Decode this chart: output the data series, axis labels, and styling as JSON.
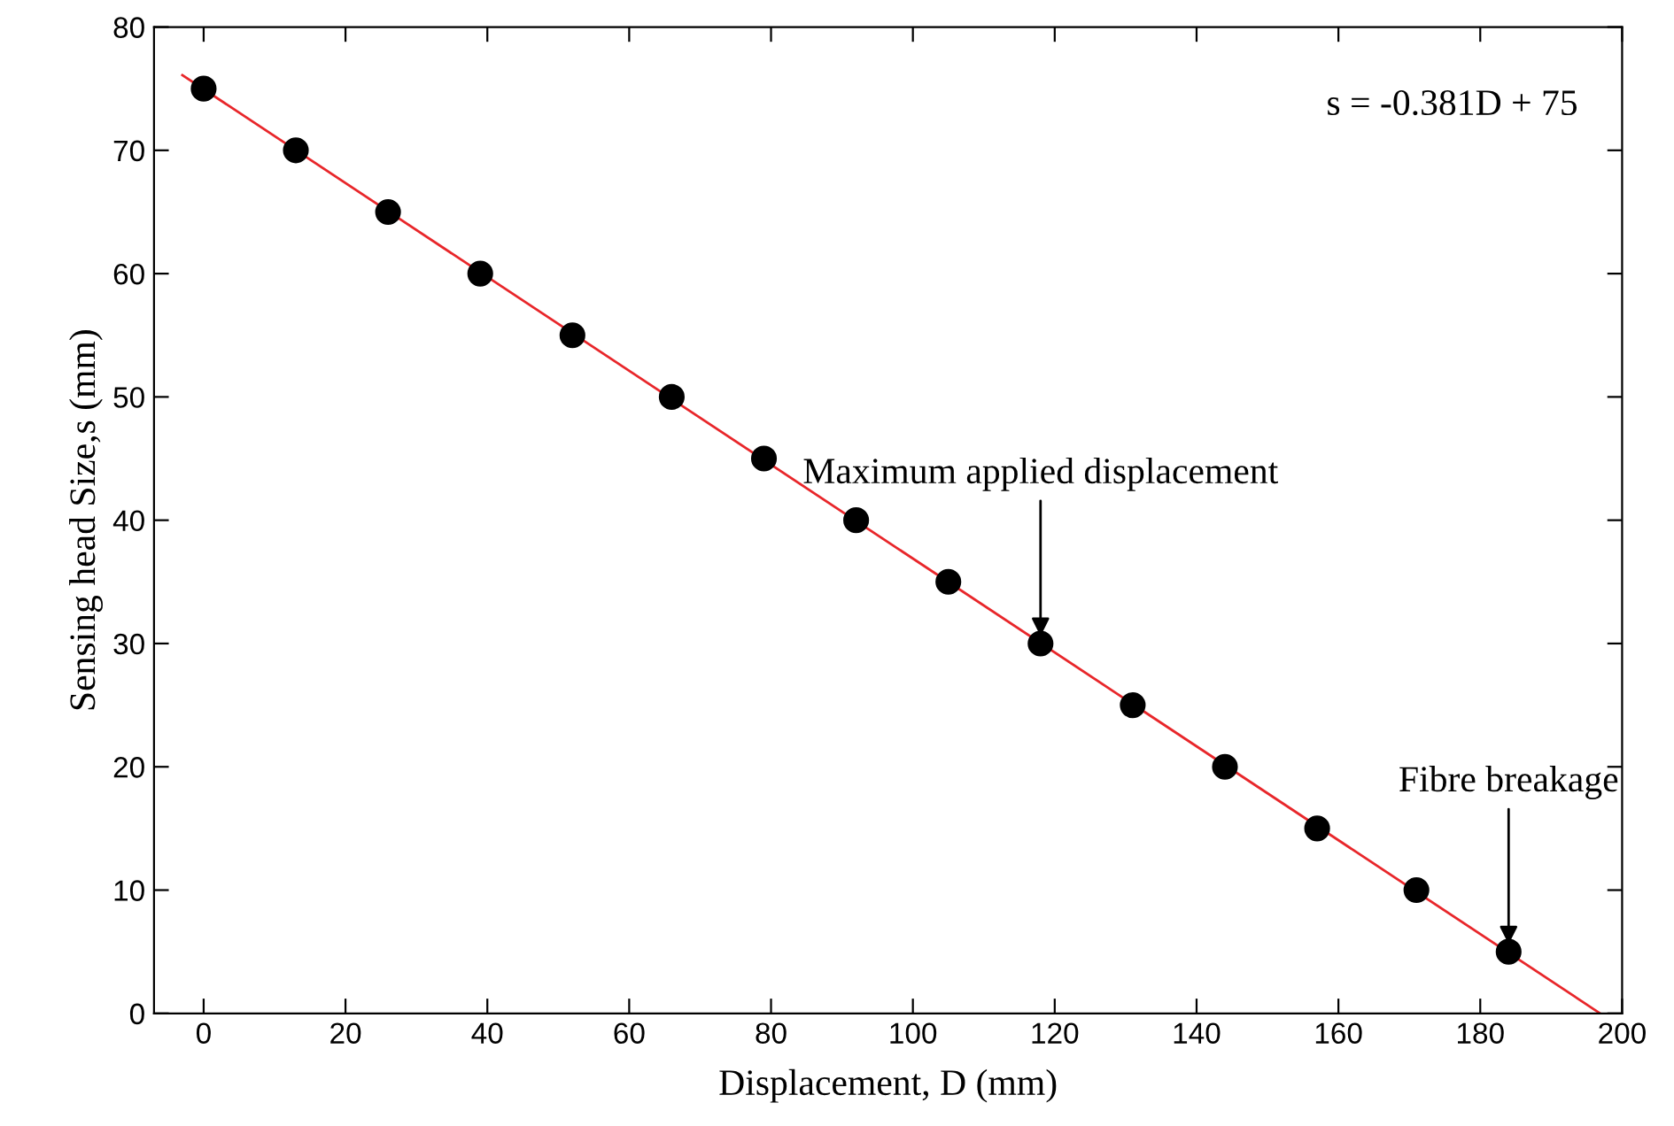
{
  "chart_data": {
    "type": "scatter",
    "xlabel": "Displacement, D (mm)",
    "ylabel": "Sensing head Size,s (mm)",
    "series": [
      {
        "type": "line",
        "color": "#e8262a",
        "x": [
          -3,
          196.9
        ],
        "values": [
          76.1,
          0
        ],
        "marker": "none"
      },
      {
        "color": "#000000",
        "x": [
          0,
          13,
          26,
          39,
          52,
          66,
          79,
          92,
          105,
          118,
          131,
          144,
          157,
          171,
          184
        ],
        "values": [
          75,
          70,
          65,
          60,
          55,
          50,
          45,
          40,
          35,
          30,
          25,
          20,
          15,
          10,
          5
        ],
        "marker": "circle"
      }
    ],
    "annotations": [
      "s = -0.381D + 75",
      {
        "text": "Maximum applied displacement",
        "x": 118,
        "y": 30
      },
      {
        "text": "Fibre breakage",
        "x": 184,
        "y": 5
      }
    ],
    "xlim": [
      -7,
      200
    ],
    "xticks": [
      0,
      20,
      40,
      60,
      80,
      100,
      120,
      140,
      160,
      180,
      200
    ],
    "ylim": [
      0,
      80
    ],
    "yticks": [
      0,
      10,
      20,
      30,
      40,
      50,
      60,
      70,
      80
    ],
    "grid": false,
    "legend": false
  }
}
